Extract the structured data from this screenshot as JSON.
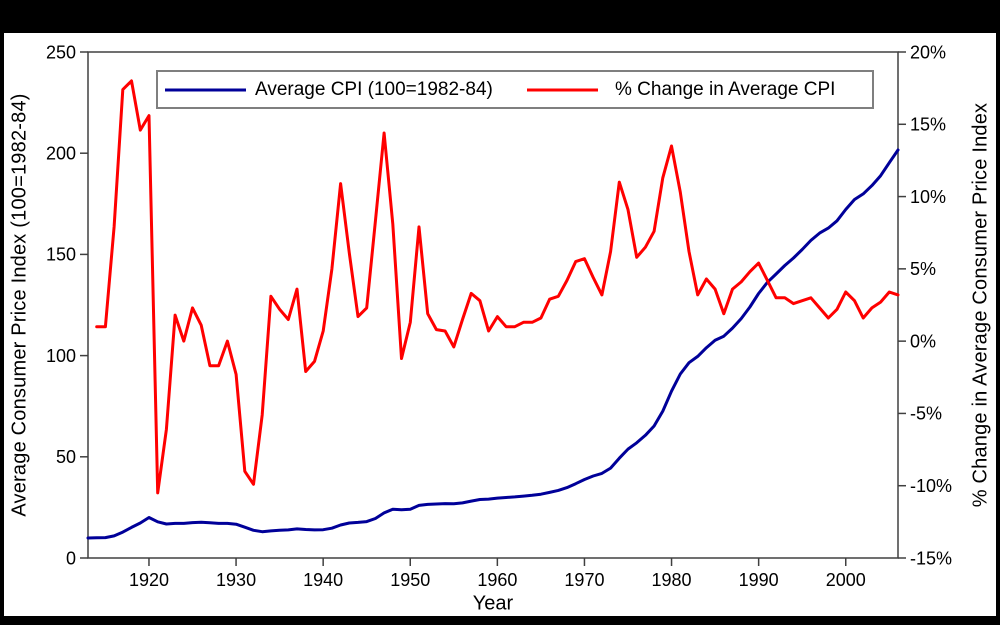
{
  "colors": {
    "background": "#000000",
    "panel_background": "#ffffff",
    "axis_line": "#404040",
    "text": "#000000",
    "legend_border": "#7f7f7f",
    "cpi_line": "#000099",
    "pct_change_line": "#ff0000"
  },
  "chart_data": {
    "type": "line",
    "title": "",
    "x": [
      1913,
      1914,
      1915,
      1916,
      1917,
      1918,
      1919,
      1920,
      1921,
      1922,
      1923,
      1924,
      1925,
      1926,
      1927,
      1928,
      1929,
      1930,
      1931,
      1932,
      1933,
      1934,
      1935,
      1936,
      1937,
      1938,
      1939,
      1940,
      1941,
      1942,
      1943,
      1944,
      1945,
      1946,
      1947,
      1948,
      1949,
      1950,
      1951,
      1952,
      1953,
      1954,
      1955,
      1956,
      1957,
      1958,
      1959,
      1960,
      1961,
      1962,
      1963,
      1964,
      1965,
      1966,
      1967,
      1968,
      1969,
      1970,
      1971,
      1972,
      1973,
      1974,
      1975,
      1976,
      1977,
      1978,
      1979,
      1980,
      1981,
      1982,
      1983,
      1984,
      1985,
      1986,
      1987,
      1988,
      1989,
      1990,
      1991,
      1992,
      1993,
      1994,
      1995,
      1996,
      1997,
      1998,
      1999,
      2000,
      2001,
      2002,
      2003,
      2004,
      2005,
      2006
    ],
    "series": [
      {
        "name": "Average CPI (100=1982-84)",
        "color": "#000099",
        "axis": "left",
        "values": [
          9.9,
          10.0,
          10.1,
          10.9,
          12.8,
          15.1,
          17.3,
          20.0,
          17.9,
          16.8,
          17.1,
          17.1,
          17.5,
          17.7,
          17.4,
          17.1,
          17.1,
          16.7,
          15.2,
          13.7,
          13.0,
          13.4,
          13.7,
          13.9,
          14.4,
          14.1,
          13.9,
          14.0,
          14.7,
          16.3,
          17.3,
          17.6,
          18.0,
          19.5,
          22.3,
          24.1,
          23.8,
          24.1,
          26.0,
          26.5,
          26.7,
          26.9,
          26.8,
          27.2,
          28.1,
          28.9,
          29.1,
          29.6,
          29.9,
          30.2,
          30.6,
          31.0,
          31.5,
          32.4,
          33.4,
          34.8,
          36.7,
          38.8,
          40.5,
          41.8,
          44.4,
          49.3,
          53.8,
          56.9,
          60.6,
          65.2,
          72.6,
          82.4,
          90.9,
          96.5,
          99.6,
          103.9,
          107.6,
          109.6,
          113.6,
          118.3,
          124.0,
          130.7,
          136.2,
          140.3,
          144.5,
          148.2,
          152.4,
          156.9,
          160.5,
          163.0,
          166.6,
          172.2,
          177.1,
          179.9,
          184.0,
          188.9,
          195.3,
          201.6
        ]
      },
      {
        "name": "% Change in Average CPI",
        "color": "#ff0000",
        "axis": "right",
        "values": [
          null,
          1.0,
          1.0,
          7.9,
          17.4,
          18.0,
          14.6,
          15.6,
          -10.5,
          -6.1,
          1.8,
          0.0,
          2.3,
          1.1,
          -1.7,
          -1.7,
          0.0,
          -2.3,
          -9.0,
          -9.9,
          -5.1,
          3.1,
          2.2,
          1.5,
          3.6,
          -2.1,
          -1.4,
          0.7,
          5.0,
          10.9,
          6.1,
          1.7,
          2.3,
          8.3,
          14.4,
          8.1,
          -1.2,
          1.3,
          7.9,
          1.9,
          0.8,
          0.7,
          -0.4,
          1.5,
          3.3,
          2.8,
          0.7,
          1.7,
          1.0,
          1.0,
          1.3,
          1.3,
          1.6,
          2.9,
          3.1,
          4.2,
          5.5,
          5.7,
          4.4,
          3.2,
          6.2,
          11.0,
          9.1,
          5.8,
          6.5,
          7.6,
          11.3,
          13.5,
          10.3,
          6.2,
          3.2,
          4.3,
          3.6,
          1.9,
          3.6,
          4.1,
          4.8,
          5.4,
          4.2,
          3.0,
          3.0,
          2.6,
          2.8,
          3.0,
          2.3,
          1.6,
          2.2,
          3.4,
          2.8,
          1.6,
          2.3,
          2.7,
          3.4,
          3.2
        ]
      }
    ],
    "x_axis": {
      "label": "Year",
      "ticks": [
        1920,
        1930,
        1940,
        1950,
        1960,
        1970,
        1980,
        1990,
        2000
      ],
      "range": [
        1913,
        2006
      ],
      "grid": false
    },
    "left_axis": {
      "label": "Average Consumer Price Index (100=1982-84)",
      "ticks": [
        0,
        50,
        100,
        150,
        200,
        250
      ],
      "range": [
        0,
        250
      ],
      "grid": false
    },
    "right_axis": {
      "label": "% Change in Average Consumer Price Index",
      "ticks": [
        -15,
        -10,
        -5,
        0,
        5,
        10,
        15,
        20
      ],
      "tick_suffix": "%",
      "range": [
        -15,
        20
      ],
      "grid": false
    },
    "legend": {
      "position": "top-center",
      "entries": [
        "Average CPI (100=1982-84)",
        "% Change in Average CPI"
      ]
    }
  }
}
